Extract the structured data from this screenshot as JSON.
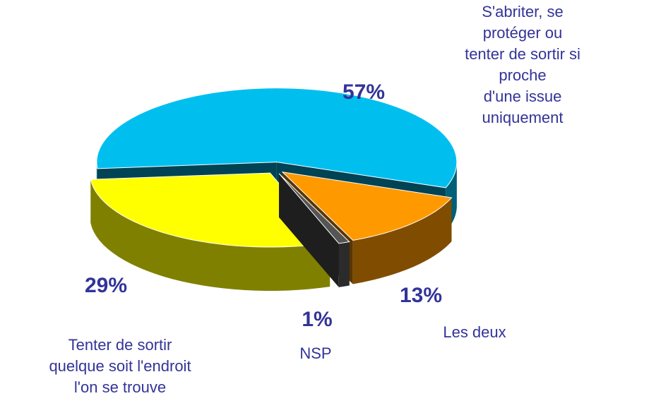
{
  "chart_data": {
    "type": "pie",
    "categories": [
      "S'abriter, se protéger ou\ntenter de sortir si proche\nd'une issue uniquement",
      "Les deux",
      "NSP",
      "Tenter de sortir\nquelque soit l'endroit\nl'on se trouve"
    ],
    "values": [
      57,
      13,
      1,
      29
    ],
    "value_labels": [
      "57%",
      "13%",
      "1%",
      "29%"
    ],
    "colors": [
      "#00bfef",
      "#ff9900",
      "#555555",
      "#ffff00"
    ]
  }
}
